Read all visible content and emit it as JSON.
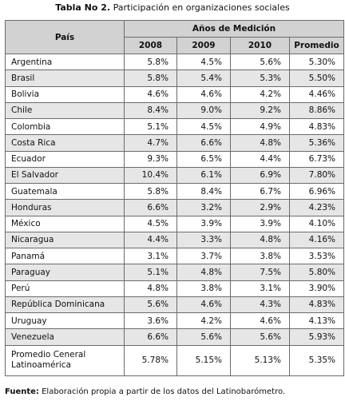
{
  "caption": {
    "label": "Tabla No 2.",
    "text": "Participación en organizaciones sociales"
  },
  "table": {
    "country_header": "País",
    "group_header": "Años de Medición",
    "columns": [
      "2008",
      "2009",
      "2010",
      "Promedio"
    ],
    "rows": [
      {
        "country": "Argentina",
        "y2008": "5.8%",
        "y2009": "4.5%",
        "y2010": "5.6%",
        "avg": "5.30%"
      },
      {
        "country": "Brasil",
        "y2008": "5.8%",
        "y2009": "5.4%",
        "y2010": "5.3%",
        "avg": "5.50%"
      },
      {
        "country": "Bolivia",
        "y2008": "4.6%",
        "y2009": "4.6%",
        "y2010": "4.2%",
        "avg": "4.46%"
      },
      {
        "country": "Chile",
        "y2008": "8.4%",
        "y2009": "9.0%",
        "y2010": "9.2%",
        "avg": "8.86%"
      },
      {
        "country": "Colombia",
        "y2008": "5.1%",
        "y2009": "4.5%",
        "y2010": "4.9%",
        "avg": "4.83%"
      },
      {
        "country": "Costa Rica",
        "y2008": "4.7%",
        "y2009": "6.6%",
        "y2010": "4.8%",
        "avg": "5.36%"
      },
      {
        "country": "Ecuador",
        "y2008": "9.3%",
        "y2009": "6.5%",
        "y2010": "4.4%",
        "avg": "6.73%"
      },
      {
        "country": "El Salvador",
        "y2008": "10.4%",
        "y2009": "6.1%",
        "y2010": "6.9%",
        "avg": "7.80%"
      },
      {
        "country": "Guatemala",
        "y2008": "5.8%",
        "y2009": "8.4%",
        "y2010": "6.7%",
        "avg": "6.96%"
      },
      {
        "country": "Honduras",
        "y2008": "6.6%",
        "y2009": "3.2%",
        "y2010": "2.9%",
        "avg": "4.23%"
      },
      {
        "country": "México",
        "y2008": "4.5%",
        "y2009": "3.9%",
        "y2010": "3.9%",
        "avg": "4.10%"
      },
      {
        "country": "Nicaragua",
        "y2008": "4.4%",
        "y2009": "3.3%",
        "y2010": "4.8%",
        "avg": "4.16%"
      },
      {
        "country": "Panamá",
        "y2008": "3.1%",
        "y2009": "3.7%",
        "y2010": "3.8%",
        "avg": "3.53%"
      },
      {
        "country": "Paraguay",
        "y2008": "5.1%",
        "y2009": "4.8%",
        "y2010": "7.5%",
        "avg": "5.80%"
      },
      {
        "country": "Perú",
        "y2008": "4.8%",
        "y2009": "3.8%",
        "y2010": "3.1%",
        "avg": "3.90%"
      },
      {
        "country": "República Dominicana",
        "y2008": "5.6%",
        "y2009": "4.6%",
        "y2010": "4.3%",
        "avg": "4.83%"
      },
      {
        "country": "Uruguay",
        "y2008": "3.6%",
        "y2009": "4.2%",
        "y2010": "4.6%",
        "avg": "4.13%"
      },
      {
        "country": "Venezuela",
        "y2008": "6.6%",
        "y2009": "5.6%",
        "y2010": "5.6%",
        "avg": "5.93%"
      }
    ],
    "total": {
      "country": "Promedio Ceneral Latinoamérica",
      "y2008": "5.78%",
      "y2009": "5.15%",
      "y2010": "5.13%",
      "avg": "5.35%"
    }
  },
  "source": {
    "label": "Fuente:",
    "text": "Elaboración propia a partir de los datos del Latinobarómetro."
  }
}
